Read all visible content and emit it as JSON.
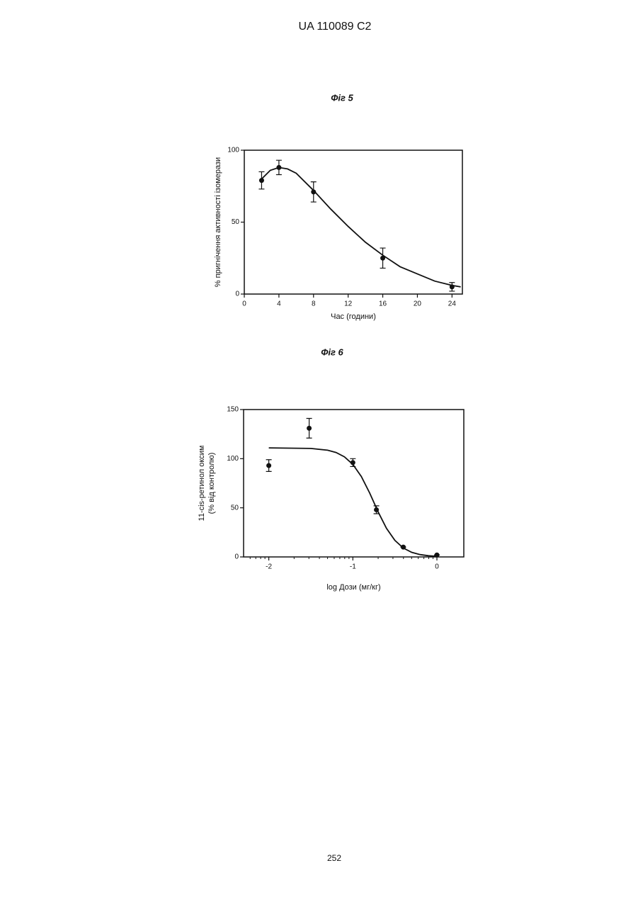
{
  "header": "UA   110089   C2",
  "page_number": "252",
  "chart_data": [
    {
      "type": "scatter",
      "title": "Фіг 5",
      "xlabel": "Час (години)",
      "ylabel": [
        "% пригнічення активності ізомерази"
      ],
      "x": [
        2,
        4,
        8,
        16,
        24
      ],
      "values": [
        79,
        88,
        71,
        25,
        5
      ],
      "errors": [
        6,
        5,
        7,
        7,
        3
      ],
      "fit": {
        "x": [
          2,
          3,
          4,
          5,
          6,
          8,
          10,
          12,
          14,
          16,
          18,
          20,
          22,
          24,
          25
        ],
        "values": [
          80,
          86,
          88,
          87,
          84,
          72,
          59,
          47,
          36,
          27,
          19,
          14,
          9,
          6,
          5
        ]
      },
      "xlim": [
        0,
        25.2
      ],
      "xticks": [
        0,
        4,
        8,
        12,
        16,
        20,
        24
      ],
      "ylim": [
        0,
        100
      ],
      "yticks": [
        0,
        50,
        100
      ],
      "color": "#111111"
    },
    {
      "type": "scatter",
      "title": "Фіг 6",
      "xlabel": "log Дози (мг/кг)",
      "ylabel": [
        "11-cis-ретинол оксим",
        "(% від контролю)"
      ],
      "x": [
        -2,
        -1.52,
        -1,
        -0.72,
        -0.4,
        0
      ],
      "values": [
        93,
        131,
        96,
        48,
        10,
        2
      ],
      "errors": [
        6,
        10,
        4,
        4,
        0,
        0
      ],
      "fit": {
        "x": [
          -2,
          -1.5,
          -1.3,
          -1.2,
          -1.1,
          -1.0,
          -0.9,
          -0.8,
          -0.75,
          -0.7,
          -0.6,
          -0.5,
          -0.4,
          -0.3,
          -0.2,
          -0.1,
          0
        ],
        "values": [
          111,
          110.4,
          108.6,
          106.3,
          101.9,
          94.2,
          81.9,
          65.0,
          55.5,
          46.0,
          29.1,
          16.8,
          9.1,
          4.7,
          2.4,
          1.2,
          0.6
        ]
      },
      "xlim": [
        -2.3,
        0.32
      ],
      "xticks": [
        -2,
        -1,
        0
      ],
      "xminorticks": [
        -2.222,
        -2.155,
        -2.097,
        -2.046,
        -1.699,
        -1.523,
        -1.398,
        -1.301,
        -1.222,
        -1.155,
        -1.097,
        -1.046,
        -0.699,
        -0.523,
        -0.398,
        -0.301,
        -0.222,
        -0.155,
        -0.097,
        -0.046
      ],
      "ylim": [
        0,
        150
      ],
      "yticks": [
        0,
        50,
        100,
        150
      ],
      "color": "#111111"
    }
  ]
}
